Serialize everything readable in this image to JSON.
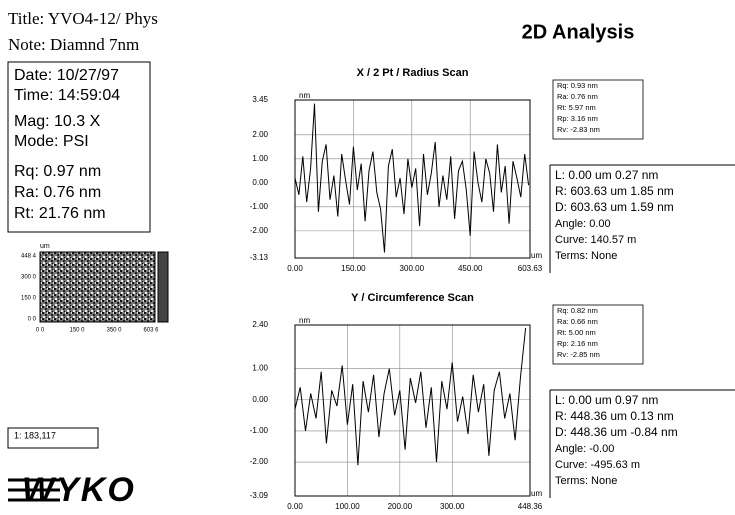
{
  "header": {
    "title": "Title: YVO4-12/ Phys",
    "note": "Note: Diamnd 7nm",
    "heading": "2D Analysis"
  },
  "info": [
    "Date: 10/27/97",
    "Time: 14:59:04",
    "Mag: 10.3 X",
    "Mode: PSI",
    "Rq: 0.97 nm",
    "Ra: 0.76 nm",
    "Rt: 21.76 nm"
  ],
  "map": {
    "y_unit": "um",
    "y_labels": [
      "448 4",
      "300 0",
      "150 0",
      "0 0"
    ],
    "x_labels": [
      "0 0",
      "150 0",
      "350 0",
      "603 6"
    ]
  },
  "count": "1: 183,117",
  "logo": "WYKO",
  "chart_data": [
    {
      "type": "line",
      "title": "X / 2 Pt / Radius Scan",
      "color": "#000000",
      "grid": true,
      "x_unit": "um",
      "y_unit": "nm",
      "x": [
        0,
        10,
        20,
        30,
        40,
        50,
        60,
        70,
        80,
        90,
        100,
        110,
        120,
        130,
        140,
        150,
        160,
        170,
        180,
        190,
        200,
        210,
        220,
        230,
        240,
        250,
        260,
        270,
        280,
        290,
        300,
        310,
        320,
        330,
        340,
        350,
        360,
        370,
        380,
        390,
        400,
        410,
        420,
        430,
        440,
        450,
        460,
        470,
        480,
        490,
        500,
        510,
        520,
        530,
        540,
        550,
        560,
        570,
        580,
        590,
        600
      ],
      "values": [
        0.2,
        -0.5,
        1.1,
        -0.8,
        0.6,
        3.3,
        -1.2,
        0.9,
        1.6,
        -0.7,
        0.3,
        -1.4,
        1.2,
        0.1,
        -0.9,
        1.5,
        -0.3,
        0.8,
        -1.6,
        0.5,
        1.3,
        -0.4,
        -1.1,
        -2.9,
        0.7,
        1.4,
        -0.6,
        0.2,
        -1.3,
        1.0,
        -0.2,
        0.6,
        -1.8,
        1.2,
        -0.5,
        0.4,
        1.7,
        -1.0,
        0.3,
        -0.7,
        1.1,
        -1.5,
        0.5,
        0.9,
        -0.3,
        -2.2,
        1.3,
        0.0,
        -0.8,
        1.0,
        0.4,
        -1.2,
        1.6,
        -0.4,
        0.7,
        -1.7,
        0.9,
        0.2,
        -0.6,
        1.2,
        -0.1
      ],
      "xlim": [
        0,
        603.63
      ],
      "xticks": [
        {
          "value": 0,
          "label": "0.00"
        },
        {
          "value": 150,
          "label": "150.00"
        },
        {
          "value": 300,
          "label": "300.00"
        },
        {
          "value": 450,
          "label": "450.00"
        },
        603.63
      ],
      "ylim": [
        -3.13,
        3.45
      ],
      "yticks": [
        3.45,
        {
          "value": 2,
          "label": "2.00"
        },
        {
          "value": 1,
          "label": "1.00"
        },
        {
          "value": 0,
          "label": "0.00"
        },
        {
          "value": -1,
          "label": "-1.00"
        },
        {
          "value": -2,
          "label": "-2.00"
        },
        -3.13
      ],
      "stats": [
        "Rq: 0.93 nm",
        "Ra: 0.76 nm",
        "Rt: 5.97 nm",
        "Rp: 3.16 nm",
        "Rv: -2.83 nm"
      ],
      "profile": [
        "L: 0.00 um  0.27 nm",
        "R: 603.63 um  1.85 nm",
        "D: 603.63 um  1.59 nm",
        "Angle: 0.00",
        "Curve: 140.57 m",
        "Terms: None"
      ]
    },
    {
      "type": "line",
      "title": "Y / Circumference Scan",
      "color": "#000000",
      "grid": true,
      "x_unit": "um",
      "y_unit": "nm",
      "x": [
        0,
        10,
        20,
        30,
        40,
        50,
        60,
        70,
        80,
        90,
        100,
        110,
        120,
        130,
        140,
        150,
        160,
        170,
        180,
        190,
        200,
        210,
        220,
        230,
        240,
        250,
        260,
        270,
        280,
        290,
        300,
        310,
        320,
        330,
        340,
        350,
        360,
        370,
        380,
        390,
        400,
        410,
        420,
        430,
        440
      ],
      "values": [
        -0.3,
        0.4,
        -1.0,
        0.2,
        -0.6,
        0.9,
        -1.4,
        0.3,
        -0.2,
        1.1,
        -0.8,
        0.5,
        -2.1,
        0.6,
        -0.4,
        0.8,
        -1.2,
        0.2,
        1.0,
        -0.5,
        0.3,
        -1.6,
        0.7,
        -0.1,
        0.9,
        -0.9,
        0.4,
        -2.0,
        0.6,
        -0.3,
        1.2,
        -0.7,
        0.1,
        -1.1,
        0.8,
        -0.4,
        0.5,
        -1.8,
        0.3,
        0.9,
        -0.6,
        0.2,
        -1.3,
        0.7,
        2.3
      ],
      "xlim": [
        0,
        448.36
      ],
      "xticks": [
        {
          "value": 0,
          "label": "0.00"
        },
        {
          "value": 100,
          "label": "100.00"
        },
        {
          "value": 200,
          "label": "200.00"
        },
        {
          "value": 300,
          "label": "300.00"
        },
        448.36
      ],
      "ylim": [
        -3.09,
        2.4
      ],
      "yticks": [
        {
          "value": 2.4,
          "label": "2.40"
        },
        {
          "value": 1,
          "label": "1.00"
        },
        {
          "value": 0,
          "label": "0.00"
        },
        {
          "value": -1,
          "label": "-1.00"
        },
        {
          "value": -2,
          "label": "-2.00"
        },
        -3.09
      ],
      "stats": [
        "Rq: 0.82 nm",
        "Ra: 0.66 nm",
        "Rt: 5.00 nm",
        "Rp: 2.16 nm",
        "Rv: -2.85 nm"
      ],
      "profile": [
        "L: 0.00 um  0.97 nm",
        "R: 448.36 um  0.13 nm",
        "D: 448.36 um  -0.84 nm",
        "Angle: -0.00",
        "Curve: -495.63 m",
        "Terms: None"
      ]
    }
  ]
}
